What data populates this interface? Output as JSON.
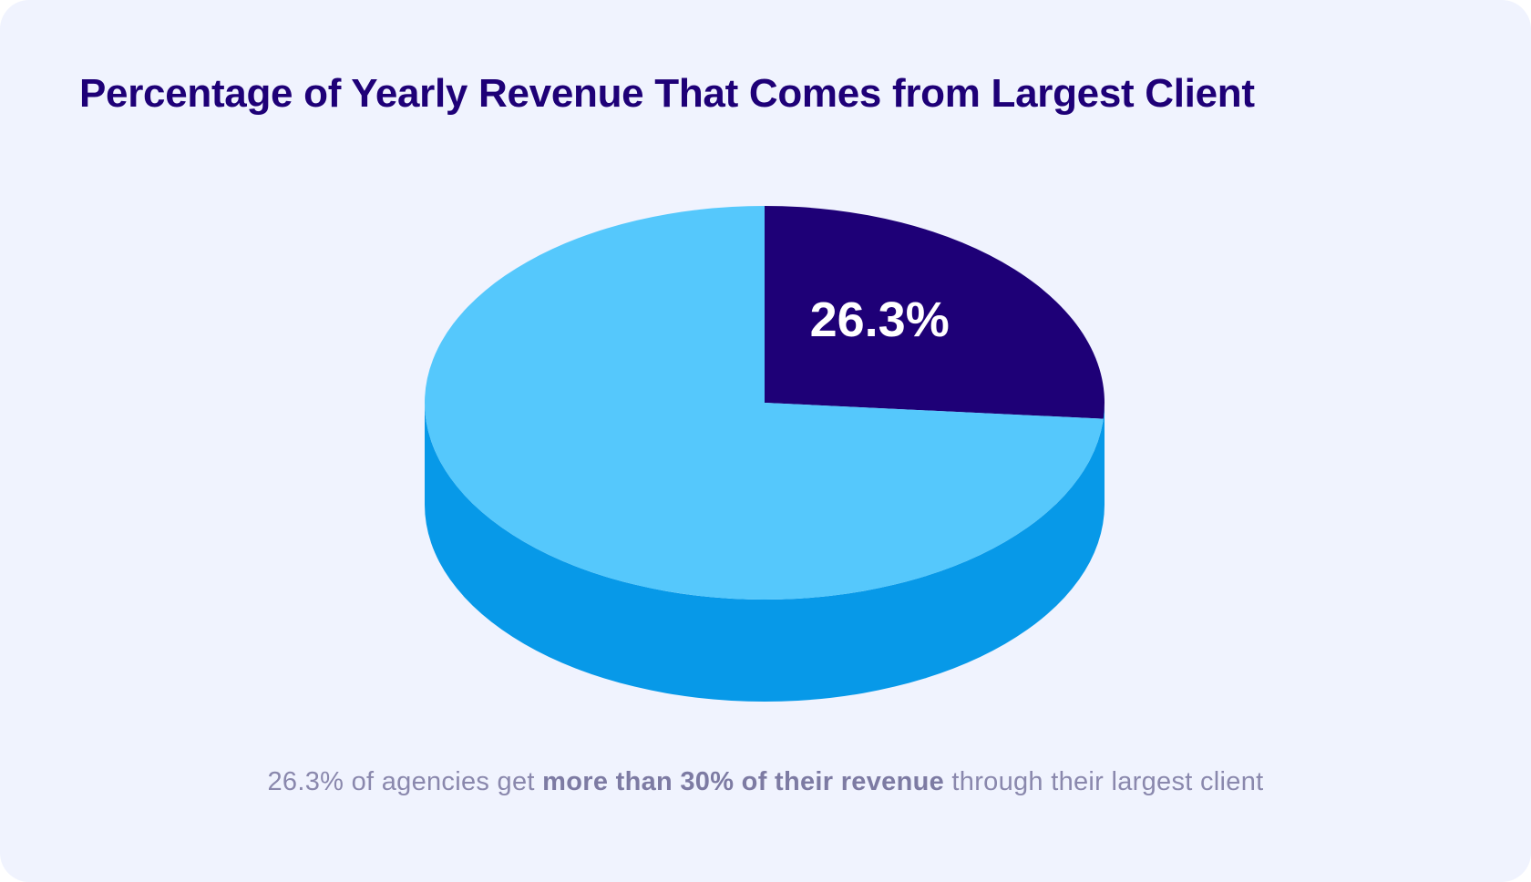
{
  "chart_data": {
    "type": "pie",
    "title": "Percentage of Yearly Revenue That Comes from Largest Client",
    "slices": [
      {
        "value": 26.3,
        "label": "26.3%",
        "color": "#1e0077"
      },
      {
        "value": 73.7,
        "label": "",
        "color": "#55c8fc"
      }
    ],
    "side_color": "#0799e8",
    "three_d": true,
    "start_angle": "12 o'clock, clockwise"
  },
  "caption": {
    "pre": "26.3% of agencies get ",
    "bold": "more than 30% of their revenue",
    "post": " through their largest client"
  }
}
